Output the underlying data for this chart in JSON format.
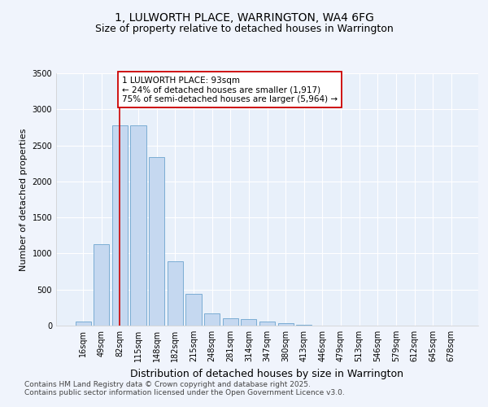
{
  "title_line1": "1, LULWORTH PLACE, WARRINGTON, WA4 6FG",
  "title_line2": "Size of property relative to detached houses in Warrington",
  "xlabel": "Distribution of detached houses by size in Warrington",
  "ylabel": "Number of detached properties",
  "categories": [
    "16sqm",
    "49sqm",
    "82sqm",
    "115sqm",
    "148sqm",
    "182sqm",
    "215sqm",
    "248sqm",
    "281sqm",
    "314sqm",
    "347sqm",
    "380sqm",
    "413sqm",
    "446sqm",
    "479sqm",
    "513sqm",
    "546sqm",
    "579sqm",
    "612sqm",
    "645sqm",
    "678sqm"
  ],
  "values": [
    55,
    1130,
    2780,
    2780,
    2340,
    890,
    440,
    165,
    100,
    90,
    60,
    35,
    8,
    3,
    1,
    1,
    0,
    0,
    0,
    0,
    0
  ],
  "bar_color": "#c5d8f0",
  "bar_edge_color": "#7badd4",
  "vline_x": 2,
  "vline_color": "#cc0000",
  "annotation_text": "1 LULWORTH PLACE: 93sqm\n← 24% of detached houses are smaller (1,917)\n75% of semi-detached houses are larger (5,964) →",
  "annotation_box_color": "#ffffff",
  "annotation_box_edge_color": "#cc0000",
  "ylim": [
    0,
    3500
  ],
  "yticks": [
    0,
    500,
    1000,
    1500,
    2000,
    2500,
    3000,
    3500
  ],
  "bg_color": "#f0f4fc",
  "plot_bg_color": "#e8f0fa",
  "grid_color": "#ffffff",
  "footer_line1": "Contains HM Land Registry data © Crown copyright and database right 2025.",
  "footer_line2": "Contains public sector information licensed under the Open Government Licence v3.0.",
  "title_fontsize": 10,
  "subtitle_fontsize": 9,
  "annotation_fontsize": 7.5,
  "ylabel_fontsize": 8,
  "xlabel_fontsize": 9,
  "footer_fontsize": 6.5,
  "tick_fontsize": 7
}
